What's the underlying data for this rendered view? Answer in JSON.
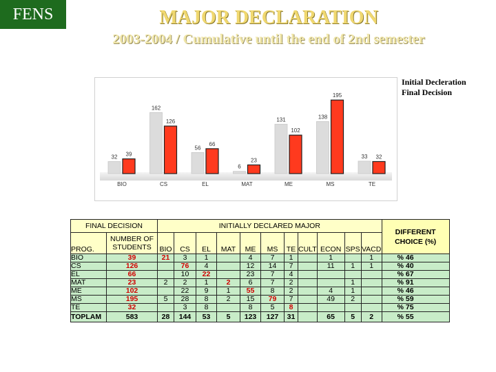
{
  "logo": "FENS",
  "title": "MAJOR DECLARATION",
  "subtitle": "2003-2004 / Cumulative until the end of 2nd semester",
  "colors": {
    "initial": "#dcdcdc",
    "final": "#ff3a1e",
    "title": "#f0d870",
    "logo_bg": "#1e6b1e"
  },
  "chart_data": {
    "type": "bar",
    "categories": [
      "BIO",
      "CS",
      "EL",
      "MAT",
      "ME",
      "MS",
      "TE"
    ],
    "series": [
      {
        "name": "Initial Decleration",
        "values": [
          32,
          162,
          56,
          6,
          131,
          138,
          33
        ]
      },
      {
        "name": "Final Decision",
        "values": [
          39,
          126,
          66,
          23,
          102,
          195,
          32
        ]
      }
    ],
    "ylim": [
      0,
      210
    ],
    "grid": false,
    "legend": "top-right"
  },
  "table": {
    "head1": {
      "final_decision": "FINAL DECISION",
      "initially": "INITIALLY DECLARED MAJOR",
      "different": "DIFFERENT CHOICE (%)"
    },
    "head2": {
      "prog": "PROG.",
      "num_students": "NUMBER OF STUDENTS",
      "cols": [
        "BIO",
        "CS",
        "EL",
        "MAT",
        "ME",
        "MS",
        "TE",
        "CULT",
        "ECON",
        "SPS",
        "VACD"
      ]
    },
    "rows": [
      {
        "prog": "BIO",
        "num": "39",
        "cells": [
          "21",
          "3",
          "1",
          "",
          "4",
          "7",
          "1",
          "",
          "1",
          "",
          "1"
        ],
        "diff": "% 46"
      },
      {
        "prog": "CS",
        "num": "126",
        "cells": [
          "",
          "76",
          "4",
          "",
          "12",
          "14",
          "7",
          "",
          "11",
          "1",
          "1"
        ],
        "diff": "% 40"
      },
      {
        "prog": "EL",
        "num": "66",
        "cells": [
          "",
          "10",
          "22",
          "",
          "23",
          "7",
          "4",
          "",
          "",
          "",
          ""
        ],
        "diff": "% 67"
      },
      {
        "prog": "MAT",
        "num": "23",
        "cells": [
          "2",
          "2",
          "1",
          "2",
          "6",
          "7",
          "2",
          "",
          "",
          "1",
          ""
        ],
        "diff": "% 91"
      },
      {
        "prog": "ME",
        "num": "102",
        "cells": [
          "",
          "22",
          "9",
          "1",
          "55",
          "8",
          "2",
          "",
          "4",
          "1",
          ""
        ],
        "diff": "% 46"
      },
      {
        "prog": "MS",
        "num": "195",
        "cells": [
          "5",
          "28",
          "8",
          "2",
          "15",
          "79",
          "7",
          "",
          "49",
          "2",
          ""
        ],
        "diff": "% 59"
      },
      {
        "prog": "TE",
        "num": "32",
        "cells": [
          "",
          "3",
          "8",
          "",
          "8",
          "5",
          "8",
          "",
          "",
          "",
          ""
        ],
        "diff": "% 75"
      }
    ],
    "total": {
      "prog": "TOPLAM",
      "num": "583",
      "cells": [
        "28",
        "144",
        "53",
        "5",
        "123",
        "127",
        "31",
        "",
        "65",
        "5",
        "2"
      ],
      "diff": "% 55"
    }
  }
}
